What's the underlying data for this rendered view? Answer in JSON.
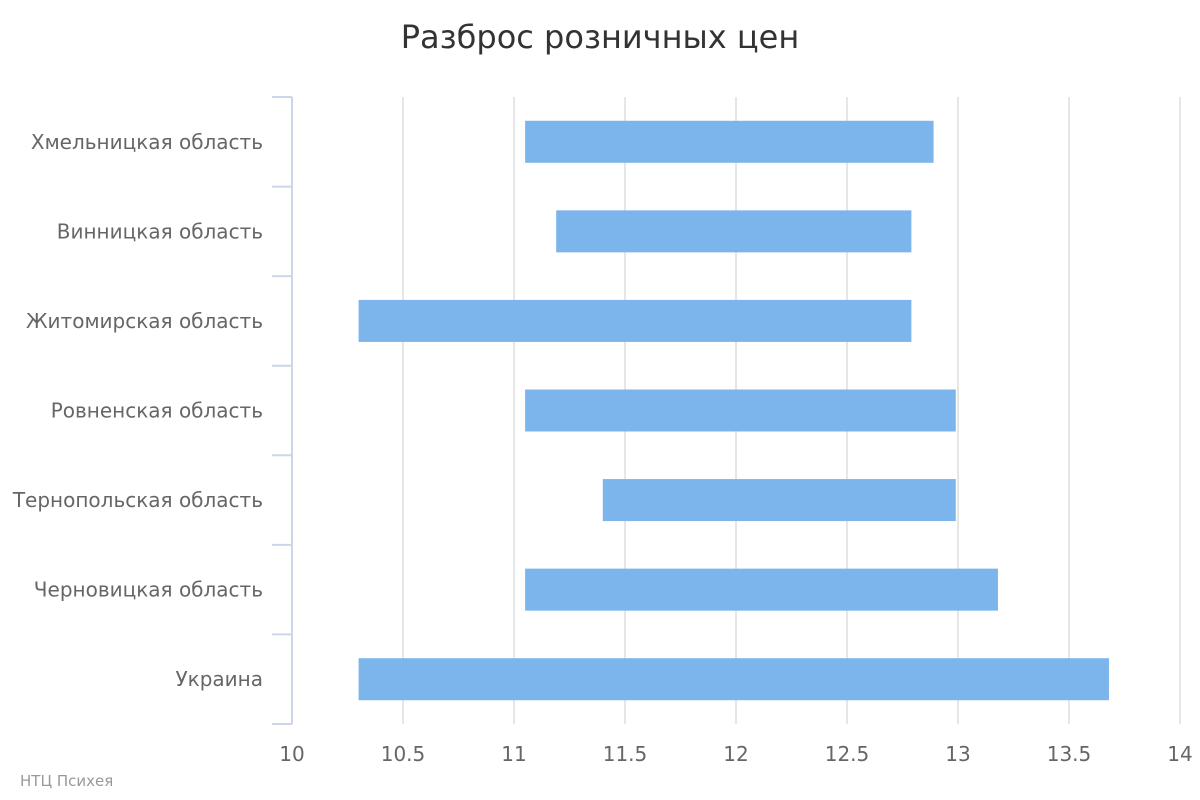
{
  "chart_data": {
    "type": "columnrange",
    "orientation": "horizontal",
    "title": "Разброс розничных цен",
    "categories": [
      "Хмельницкая область",
      "Винницкая область",
      "Житомирская область",
      "Ровненская область",
      "Тернопольская область",
      "Черновицкая область",
      "Украина"
    ],
    "ranges": [
      [
        11.05,
        12.89
      ],
      [
        11.19,
        12.79
      ],
      [
        10.3,
        12.79
      ],
      [
        11.05,
        12.99
      ],
      [
        11.4,
        12.99
      ],
      [
        11.05,
        13.18
      ],
      [
        10.3,
        13.68
      ]
    ],
    "xlim": [
      10,
      14
    ],
    "xticks": [
      10,
      10.5,
      11,
      11.5,
      12,
      12.5,
      13,
      13.5,
      14
    ],
    "xtick_labels": [
      "10",
      "10.5",
      "11",
      "11.5",
      "12",
      "12.5",
      "13",
      "13.5",
      "14"
    ],
    "bar_color": "#7cb5ec",
    "grid": true,
    "legend": "none"
  },
  "credit": "НТЦ Психея"
}
